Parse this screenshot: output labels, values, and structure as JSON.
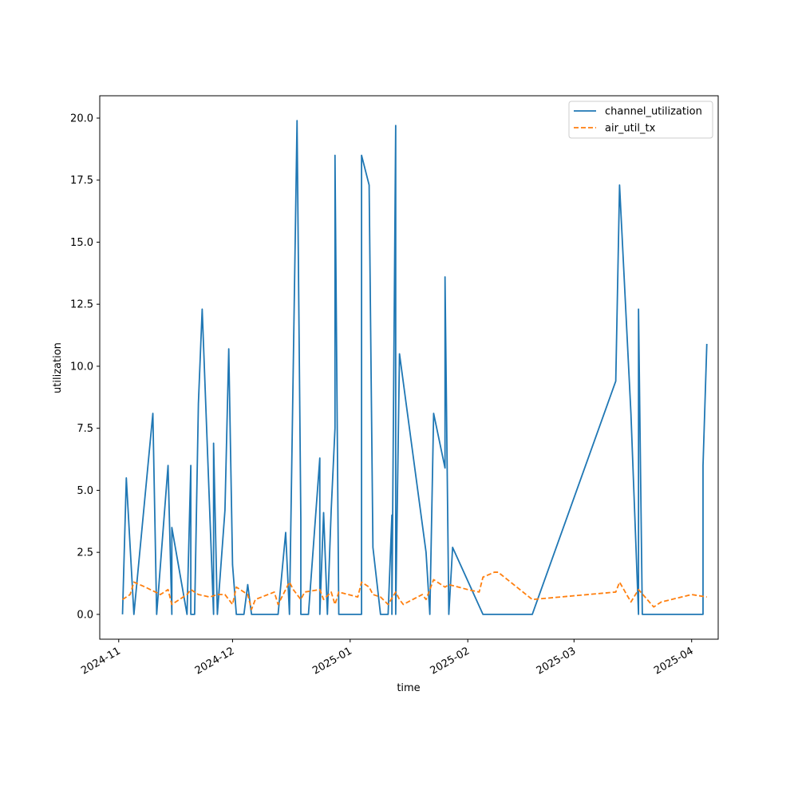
{
  "chart_data": {
    "type": "line",
    "xlabel": "time",
    "ylabel": "utilization",
    "xlim": [
      "2024-10-27",
      "2025-04-08"
    ],
    "ylim": [
      -1.0,
      20.9
    ],
    "x_ticks": [
      "2024-11-01",
      "2024-12-01",
      "2025-01-01",
      "2025-02-01",
      "2025-03-01",
      "2025-04-01"
    ],
    "x_tick_labels": [
      "2024-11",
      "2024-12",
      "2025-01",
      "2025-02",
      "2025-03",
      "2025-04"
    ],
    "y_ticks": [
      0.0,
      2.5,
      5.0,
      7.5,
      10.0,
      12.5,
      15.0,
      17.5,
      20.0
    ],
    "y_tick_labels": [
      "0.0",
      "2.5",
      "5.0",
      "7.5",
      "10.0",
      "12.5",
      "15.0",
      "17.5",
      "20.0"
    ],
    "grid": false,
    "legend_position": "top-right",
    "series": [
      {
        "name": "channel_utilization",
        "color": "#1f77b4",
        "style": "solid",
        "points": [
          [
            "2024-11-02",
            0.0
          ],
          [
            "2024-11-03",
            5.5
          ],
          [
            "2024-11-05",
            0.0
          ],
          [
            "2024-11-10",
            8.1
          ],
          [
            "2024-11-11",
            0.0
          ],
          [
            "2024-11-14",
            6.0
          ],
          [
            "2024-11-15",
            0.0
          ],
          [
            "2024-11-15",
            3.5
          ],
          [
            "2024-11-19",
            0.0
          ],
          [
            "2024-11-20",
            6.0
          ],
          [
            "2024-11-20",
            0.0
          ],
          [
            "2024-11-21",
            0.0
          ],
          [
            "2024-11-22",
            8.5
          ],
          [
            "2024-11-23",
            12.3
          ],
          [
            "2024-11-26",
            0.0
          ],
          [
            "2024-11-26",
            6.9
          ],
          [
            "2024-11-27",
            0.0
          ],
          [
            "2024-11-29",
            4.2
          ],
          [
            "2024-11-30",
            10.7
          ],
          [
            "2024-12-01",
            2.0
          ],
          [
            "2024-12-02",
            0.0
          ],
          [
            "2024-12-04",
            0.0
          ],
          [
            "2024-12-05",
            1.2
          ],
          [
            "2024-12-06",
            0.0
          ],
          [
            "2024-12-13",
            0.0
          ],
          [
            "2024-12-15",
            3.3
          ],
          [
            "2024-12-16",
            0.0
          ],
          [
            "2024-12-18",
            19.9
          ],
          [
            "2024-12-19",
            3.8
          ],
          [
            "2024-12-19",
            0.0
          ],
          [
            "2024-12-21",
            0.0
          ],
          [
            "2024-12-24",
            6.3
          ],
          [
            "2024-12-24",
            0.0
          ],
          [
            "2024-12-25",
            4.1
          ],
          [
            "2024-12-26",
            0.0
          ],
          [
            "2024-12-27",
            4.2
          ],
          [
            "2024-12-28",
            7.5
          ],
          [
            "2024-12-28",
            18.5
          ],
          [
            "2024-12-29",
            0.0
          ],
          [
            "2025-01-04",
            0.0
          ],
          [
            "2025-01-04",
            18.5
          ],
          [
            "2025-01-06",
            17.3
          ],
          [
            "2025-01-07",
            2.7
          ],
          [
            "2025-01-09",
            0.0
          ],
          [
            "2025-01-11",
            0.0
          ],
          [
            "2025-01-12",
            4.0
          ],
          [
            "2025-01-12",
            0.0
          ],
          [
            "2025-01-13",
            19.7
          ],
          [
            "2025-01-13",
            0.0
          ],
          [
            "2025-01-14",
            10.5
          ],
          [
            "2025-01-21",
            2.5
          ],
          [
            "2025-01-22",
            0.0
          ],
          [
            "2025-01-23",
            8.1
          ],
          [
            "2025-01-26",
            5.9
          ],
          [
            "2025-01-26",
            13.6
          ],
          [
            "2025-01-27",
            0.0
          ],
          [
            "2025-01-28",
            2.7
          ],
          [
            "2025-02-05",
            0.0
          ],
          [
            "2025-02-18",
            0.0
          ],
          [
            "2025-03-12",
            9.4
          ],
          [
            "2025-03-13",
            17.3
          ],
          [
            "2025-03-16",
            8.1
          ],
          [
            "2025-03-18",
            0.0
          ],
          [
            "2025-03-18",
            12.3
          ],
          [
            "2025-03-19",
            0.0
          ],
          [
            "2025-04-03",
            0.0
          ],
          [
            "2025-04-04",
            0.0
          ],
          [
            "2025-04-04",
            6.0
          ],
          [
            "2025-04-05",
            10.9
          ]
        ]
      },
      {
        "name": "air_util_tx",
        "color": "#ff7f0e",
        "style": "dashed",
        "points": [
          [
            "2024-11-02",
            0.6
          ],
          [
            "2024-11-04",
            0.8
          ],
          [
            "2024-11-05",
            1.3
          ],
          [
            "2024-11-08",
            1.1
          ],
          [
            "2024-11-12",
            0.8
          ],
          [
            "2024-11-14",
            1.0
          ],
          [
            "2024-11-15",
            0.4
          ],
          [
            "2024-11-17",
            0.6
          ],
          [
            "2024-11-19",
            0.8
          ],
          [
            "2024-11-20",
            1.0
          ],
          [
            "2024-11-22",
            0.8
          ],
          [
            "2024-11-25",
            0.7
          ],
          [
            "2024-11-27",
            0.8
          ],
          [
            "2024-11-29",
            0.8
          ],
          [
            "2024-11-30",
            0.6
          ],
          [
            "2024-12-01",
            0.4
          ],
          [
            "2024-12-02",
            1.1
          ],
          [
            "2024-12-04",
            0.9
          ],
          [
            "2024-12-05",
            0.8
          ],
          [
            "2024-12-06",
            0.2
          ],
          [
            "2024-12-07",
            0.6
          ],
          [
            "2024-12-12",
            0.9
          ],
          [
            "2024-12-13",
            0.4
          ],
          [
            "2024-12-16",
            1.3
          ],
          [
            "2024-12-17",
            1.0
          ],
          [
            "2024-12-19",
            0.6
          ],
          [
            "2024-12-20",
            0.9
          ],
          [
            "2024-12-24",
            1.0
          ],
          [
            "2024-12-25",
            0.6
          ],
          [
            "2024-12-27",
            0.9
          ],
          [
            "2024-12-28",
            0.4
          ],
          [
            "2024-12-29",
            0.9
          ],
          [
            "2025-01-03",
            0.7
          ],
          [
            "2025-01-04",
            1.3
          ],
          [
            "2025-01-06",
            1.1
          ],
          [
            "2025-01-07",
            0.8
          ],
          [
            "2025-01-09",
            0.7
          ],
          [
            "2025-01-11",
            0.4
          ],
          [
            "2025-01-13",
            0.9
          ],
          [
            "2025-01-14",
            0.6
          ],
          [
            "2025-01-15",
            0.4
          ],
          [
            "2025-01-20",
            0.8
          ],
          [
            "2025-01-21",
            0.6
          ],
          [
            "2025-01-23",
            1.4
          ],
          [
            "2025-01-26",
            1.1
          ],
          [
            "2025-01-27",
            1.2
          ],
          [
            "2025-02-01",
            1.0
          ],
          [
            "2025-02-04",
            0.9
          ],
          [
            "2025-02-05",
            1.5
          ],
          [
            "2025-02-08",
            1.7
          ],
          [
            "2025-02-09",
            1.7
          ],
          [
            "2025-02-18",
            0.6
          ],
          [
            "2025-03-12",
            0.9
          ],
          [
            "2025-03-13",
            1.3
          ],
          [
            "2025-03-16",
            0.5
          ],
          [
            "2025-03-18",
            1.0
          ],
          [
            "2025-03-22",
            0.3
          ],
          [
            "2025-03-24",
            0.5
          ],
          [
            "2025-04-01",
            0.8
          ],
          [
            "2025-04-05",
            0.7
          ]
        ]
      }
    ]
  }
}
